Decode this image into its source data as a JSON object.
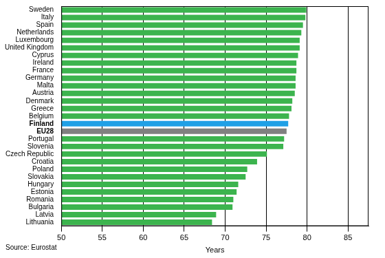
{
  "chart_data": {
    "type": "bar",
    "orientation": "horizontal",
    "categories": [
      "Sweden",
      "Italy",
      "Spain",
      "Netherlands",
      "Luxembourg",
      "United Kingdom",
      "Cyprus",
      "Ireland",
      "France",
      "Germany",
      "Malta",
      "Austria",
      "Denmark",
      "Greece",
      "Belgium",
      "Finland",
      "EU28",
      "Portugal",
      "Slovenia",
      "Czech Republic",
      "Croatia",
      "Poland",
      "Slovakia",
      "Hungary",
      "Estonia",
      "Romania",
      "Bulgaria",
      "Latvia",
      "Lithuania"
    ],
    "values": [
      79.9,
      79.8,
      79.5,
      79.3,
      79.1,
      79.1,
      78.9,
      78.7,
      78.7,
      78.6,
      78.6,
      78.5,
      78.2,
      78.1,
      77.8,
      77.7,
      77.5,
      77.2,
      77.1,
      75.1,
      73.9,
      72.7,
      72.5,
      71.6,
      71.4,
      71.0,
      70.9,
      68.9,
      68.4
    ],
    "colors": [
      "#3cb44e",
      "#3cb44e",
      "#3cb44e",
      "#3cb44e",
      "#3cb44e",
      "#3cb44e",
      "#3cb44e",
      "#3cb44e",
      "#3cb44e",
      "#3cb44e",
      "#3cb44e",
      "#3cb44e",
      "#3cb44e",
      "#3cb44e",
      "#3cb44e",
      "#1fa0e6",
      "#808080",
      "#3cb44e",
      "#3cb44e",
      "#3cb44e",
      "#3cb44e",
      "#3cb44e",
      "#3cb44e",
      "#3cb44e",
      "#3cb44e",
      "#3cb44e",
      "#3cb44e",
      "#3cb44e",
      "#3cb44e"
    ],
    "x_label": "Years",
    "note": "Source: Eurostat",
    "xlim": [
      50,
      87.5
    ],
    "xticks": [
      50,
      55,
      60,
      65,
      70,
      75,
      80,
      85
    ],
    "grid": true
  }
}
